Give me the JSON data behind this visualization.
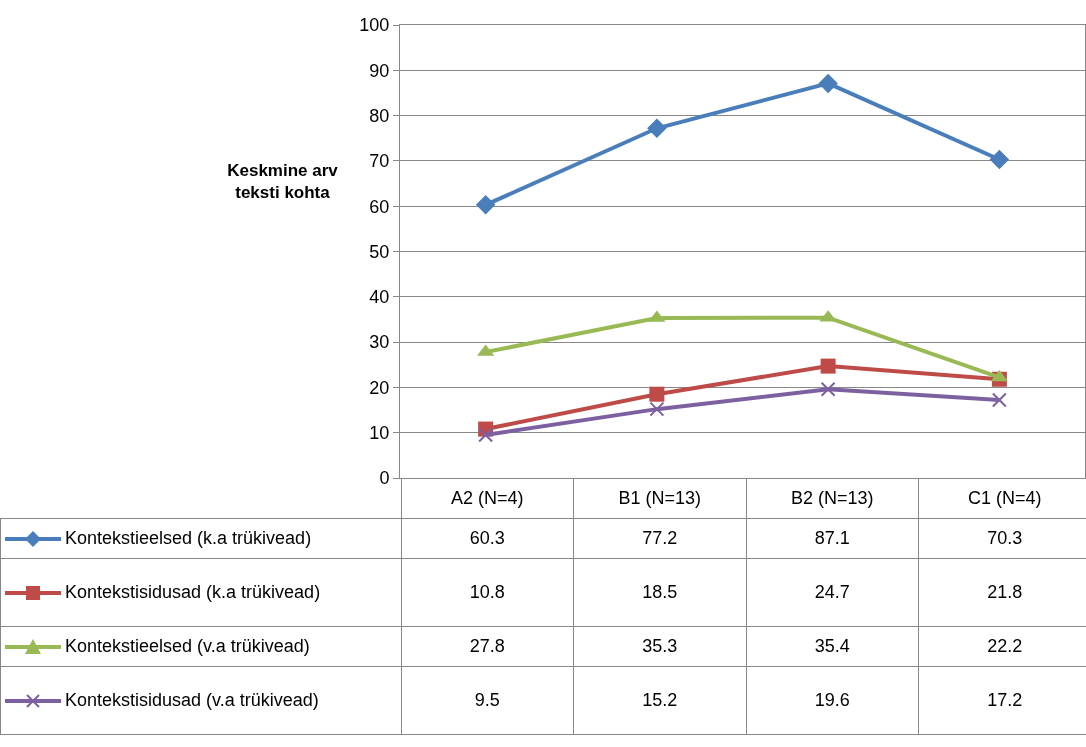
{
  "chart_data": {
    "type": "line",
    "ylabel": "Keskmine arv teksti kohta",
    "categories": [
      "A2 (N=4)",
      "B1 (N=13)",
      "B2 (N=13)",
      "C1 (N=4)"
    ],
    "series": [
      {
        "name": "Kontekstieelsed (k.a trükivead)",
        "color": "#4a7ebb",
        "marker": "diamond",
        "values": [
          60.3,
          77.2,
          87.1,
          70.3
        ]
      },
      {
        "name": "Kontekstisidusad (k.a trükivead)",
        "color": "#be4b48",
        "marker": "square",
        "values": [
          10.8,
          18.5,
          24.7,
          21.8
        ]
      },
      {
        "name": "Kontekstieelsed (v.a trükivead)",
        "color": "#98b954",
        "marker": "triangle",
        "values": [
          27.8,
          35.3,
          35.4,
          22.2
        ]
      },
      {
        "name": "Kontekstisidusad (v.a trükivead)",
        "color": "#7d60a0",
        "marker": "cross",
        "values": [
          9.5,
          15.2,
          19.6,
          17.2
        ]
      }
    ],
    "ylim": [
      0,
      100
    ],
    "yticks": [
      0,
      10,
      20,
      30,
      40,
      50,
      60,
      70,
      80,
      90,
      100
    ],
    "grid": "y",
    "legend": "bottom",
    "data_labels": true,
    "tick_labels": "y",
    "line_style": "solid"
  }
}
